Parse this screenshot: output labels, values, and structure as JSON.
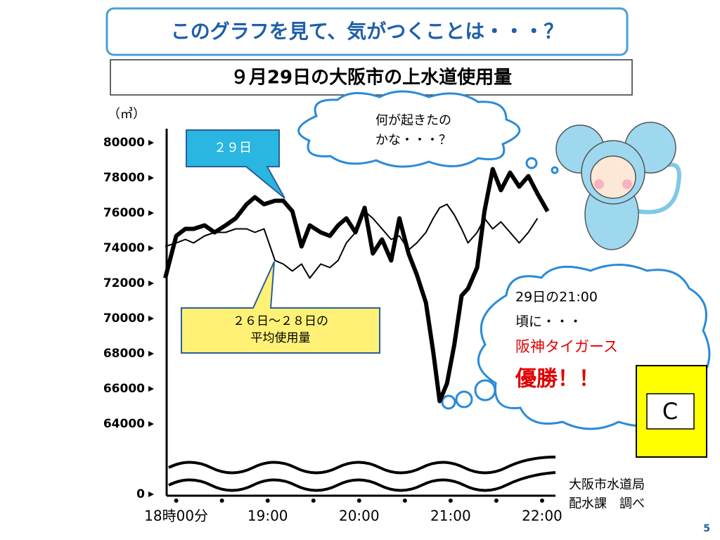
{
  "slide": {
    "title": "このグラフを見て、気がつくことは・・・？",
    "subtitle": "９月29日の大阪市の上水道使用量",
    "thought_top": [
      "何が起きたの",
      "かな・・・？"
    ],
    "thought_right": [
      "29日の21:00",
      "頃に・・・",
      "阪神タイガース",
      "優勝！！"
    ],
    "badge": "C",
    "source": [
      "大阪市水道局",
      "配水課　調べ"
    ],
    "page_number": "5"
  },
  "chart_data": {
    "type": "line",
    "y_label": "（㎥）",
    "xlim": [
      17.88,
      22.3
    ],
    "xticks": [
      {
        "value": 18,
        "label": "18時00分"
      },
      {
        "value": 19,
        "label": "19:00"
      },
      {
        "value": 20,
        "label": "20:00"
      },
      {
        "value": 21,
        "label": "21:00"
      },
      {
        "value": 22,
        "label": "22:00"
      }
    ],
    "ylim": [
      0,
      80000
    ],
    "yticks": [
      0,
      64000,
      66000,
      68000,
      70000,
      72000,
      74000,
      76000,
      78000,
      80000
    ],
    "axis_break": true,
    "x": [
      17.88,
      18,
      18.1,
      18.19,
      18.31,
      18.42,
      18.54,
      18.65,
      18.77,
      18.86,
      18.96,
      19.08,
      19.17,
      19.27,
      19.37,
      19.46,
      19.58,
      19.68,
      19.77,
      19.86,
      19.96,
      20.06,
      20.15,
      20.25,
      20.35,
      20.44,
      20.54,
      20.63,
      20.73,
      20.81,
      20.88,
      20.96,
      21.04,
      21.12,
      21.19,
      21.29,
      21.37,
      21.46,
      21.55,
      21.65,
      21.75,
      21.85,
      21.95,
      22.06
    ],
    "series": [
      {
        "name": "２９日",
        "color": "#000000",
        "values": [
          72300,
          74700,
          75100,
          75100,
          75300,
          74900,
          75300,
          75700,
          76500,
          76900,
          76500,
          76700,
          76700,
          76100,
          74100,
          75300,
          74900,
          74700,
          75300,
          75700,
          74900,
          76300,
          73700,
          74500,
          73300,
          75700,
          73700,
          72500,
          70900,
          68100,
          65300,
          66300,
          68500,
          71300,
          71700,
          72900,
          76100,
          78500,
          77300,
          78300,
          77500,
          78100,
          77100,
          76100
        ]
      },
      {
        "name": "２６日～２８日の平均使用量",
        "color": "#000000",
        "values": [
          74100,
          74300,
          74500,
          74300,
          74700,
          74900,
          74900,
          75100,
          75100,
          74900,
          75100,
          73300,
          73100,
          72700,
          73100,
          72300,
          73100,
          72900,
          73300,
          74300,
          74900,
          76100,
          75700,
          75100,
          74500,
          74700,
          73900,
          74300,
          74900,
          75700,
          76300,
          76500,
          75900,
          75100,
          74300,
          74900,
          75700,
          75100,
          75500,
          74900,
          74300,
          74900,
          75700,
          null
        ]
      }
    ]
  }
}
